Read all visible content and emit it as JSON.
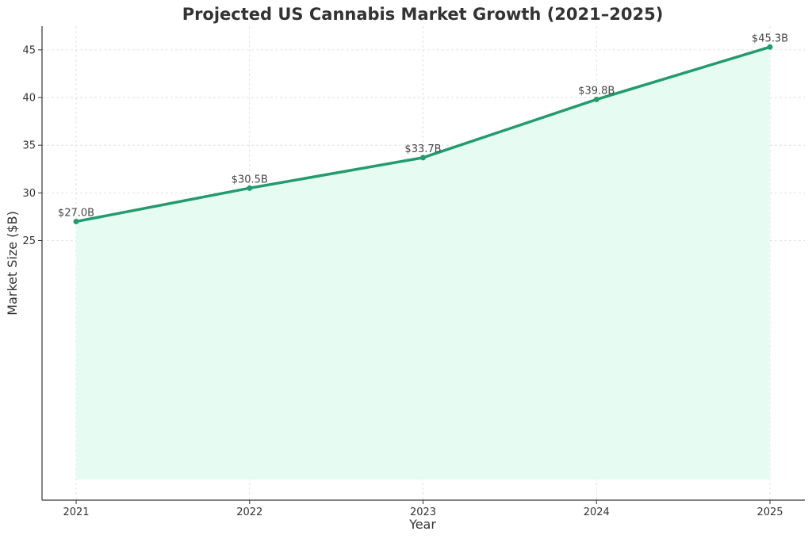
{
  "chart_data": {
    "type": "area",
    "title": "Projected US Cannabis Market Growth (2021–2025)",
    "xlabel": "Year",
    "ylabel": "Market Size ($B)",
    "categories": [
      "2021",
      "2022",
      "2023",
      "2024",
      "2025"
    ],
    "series": [
      {
        "values": [
          27.0,
          30.5,
          33.7,
          39.8,
          45.3
        ]
      }
    ],
    "data_labels": [
      "$27.0B",
      "$30.5B",
      "$33.7B",
      "$39.8B",
      "$45.3B"
    ],
    "y_ticks": [
      25,
      30,
      35,
      40,
      45
    ],
    "area_baseline": 0,
    "grid": true,
    "colors": {
      "line": "#229b6e",
      "fill": "#e6fbf1"
    }
  }
}
